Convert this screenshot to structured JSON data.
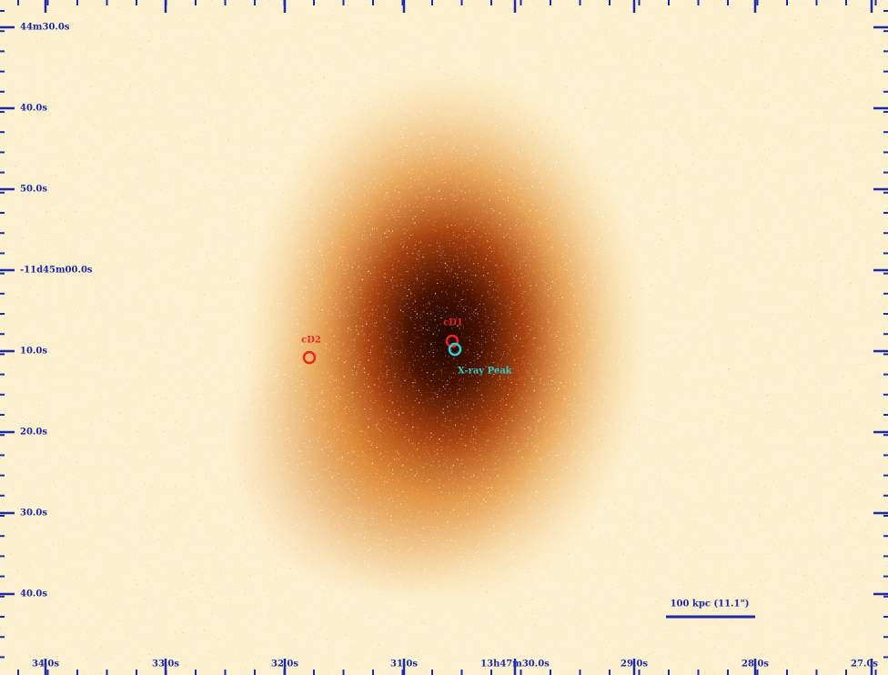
{
  "y_labels": [
    "44m30.0s",
    "40.0s",
    "50.0s",
    "-11d45m00.0s",
    "10.0s",
    "20.0s",
    "30.0s",
    "40.0s"
  ],
  "x_labels": [
    "34.0s",
    "33.0s",
    "32.0s",
    "31.0s",
    "13h47m30.0s",
    "29.0s",
    "28.0s",
    "27.0s"
  ],
  "annotations": {
    "cd1": "cD1",
    "cd2": "cD2",
    "xray_peak": "X-ray Peak"
  },
  "scale_bar": "100 kpc (11.1\")"
}
